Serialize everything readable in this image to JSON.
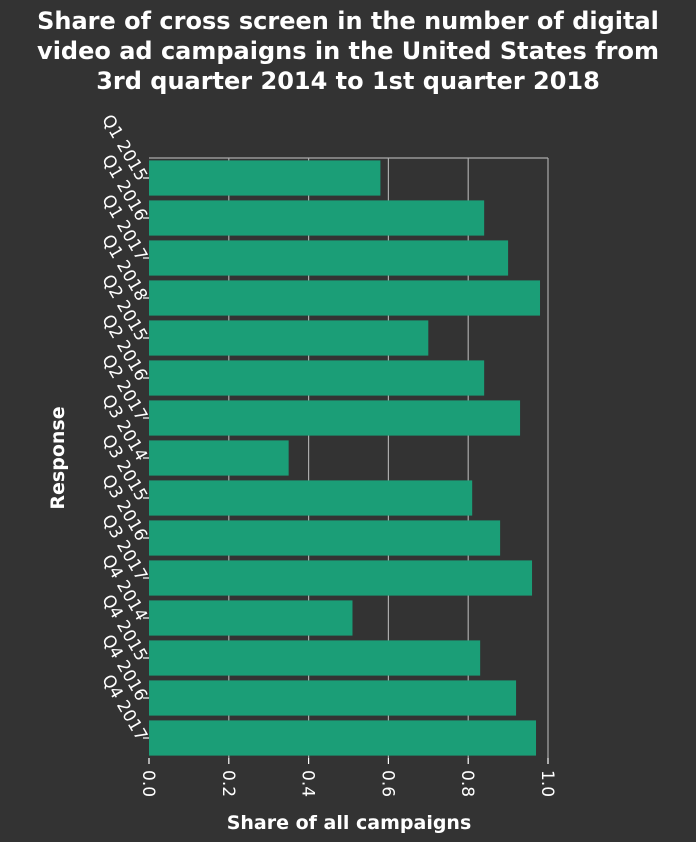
{
  "title_lines": [
    "Share of cross screen in the number of digital",
    "video ad campaigns in the United States from",
    "3rd quarter 2014 to 1st quarter 2018"
  ],
  "colors": {
    "background": "#333333",
    "bar": "#1b9e77",
    "grid": "#ababab",
    "text": "#ffffff"
  },
  "chart_data": {
    "type": "bar",
    "orientation": "horizontal",
    "title": "Share of cross screen in the number of digital video ad campaigns in the United States from 3rd quarter 2014 to 1st quarter 2018",
    "xlabel": "Share of all campaigns",
    "ylabel": "Response",
    "categories": [
      "Q1 2015",
      "Q1 2016",
      "Q1 2017",
      "Q1 2018",
      "Q2 2015",
      "Q2 2016",
      "Q2 2017",
      "Q3 2014",
      "Q3 2015",
      "Q3 2016",
      "Q3 2017",
      "Q4 2014",
      "Q4 2015",
      "Q4 2016",
      "Q4 2017"
    ],
    "values": [
      0.58,
      0.84,
      0.9,
      0.98,
      0.7,
      0.84,
      0.93,
      0.35,
      0.81,
      0.88,
      0.96,
      0.51,
      0.83,
      0.92,
      0.97
    ],
    "xlim": [
      0,
      1.0
    ],
    "xticks": [
      "0.0",
      "0.2",
      "0.4",
      "0.6",
      "0.8",
      "1.0"
    ],
    "grid": true
  }
}
